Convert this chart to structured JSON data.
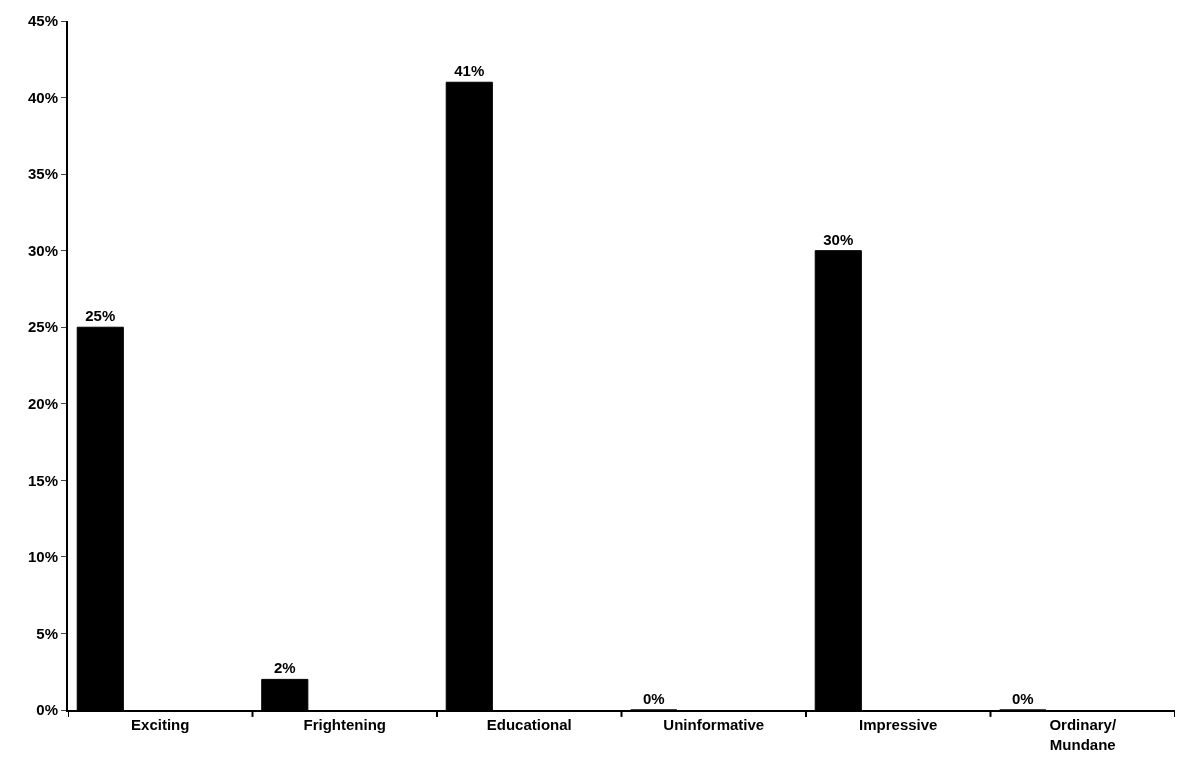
{
  "chart_data": {
    "type": "bar",
    "categories": [
      "Exciting",
      "Frightening",
      "Educational",
      "Uninformative",
      "Impressive",
      "Ordinary/\nMundane"
    ],
    "values": [
      25,
      2,
      41,
      0,
      30,
      0
    ],
    "value_labels": [
      "25%",
      "2%",
      "41%",
      "0%",
      "30%",
      "0%"
    ],
    "color": "#000000",
    "ylim": [
      0,
      45
    ],
    "yticks": [
      {
        "value": 0,
        "label": "0%"
      },
      {
        "value": 5,
        "label": "5%"
      },
      {
        "value": 10,
        "label": "10%"
      },
      {
        "value": 15,
        "label": "15%"
      },
      {
        "value": 20,
        "label": "20%"
      },
      {
        "value": 25,
        "label": "25%"
      },
      {
        "value": 30,
        "label": "30%"
      },
      {
        "value": 35,
        "label": "35%"
      },
      {
        "value": 40,
        "label": "40%"
      },
      {
        "value": 45,
        "label": "45%"
      }
    ],
    "legend": false
  }
}
